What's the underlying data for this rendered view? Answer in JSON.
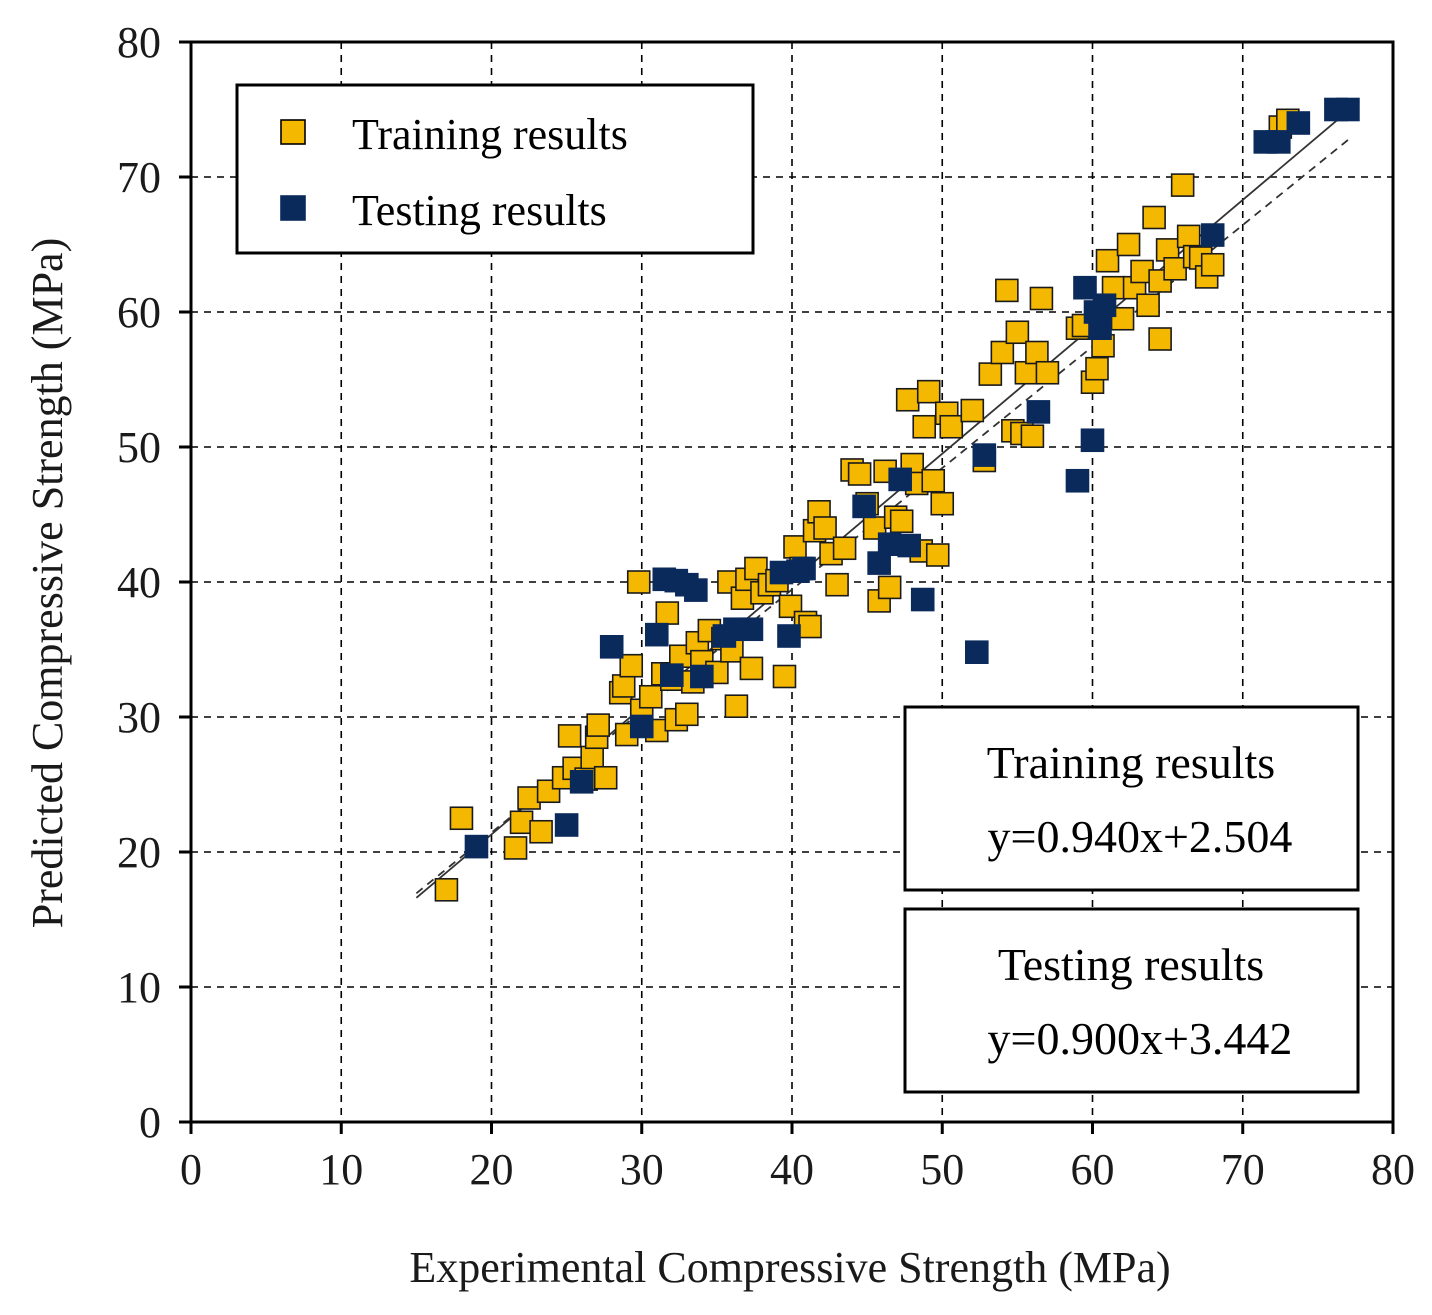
{
  "chart_data": {
    "type": "scatter",
    "title": "",
    "xlabel": "Experimental Compressive Strength (MPa)",
    "ylabel": "Predicted Compressive Strength (MPa)",
    "xlim": [
      0,
      80
    ],
    "ylim": [
      0,
      80
    ],
    "xticks": [
      0,
      10,
      20,
      30,
      40,
      50,
      60,
      70,
      80
    ],
    "yticks": [
      0,
      10,
      20,
      30,
      40,
      50,
      60,
      70,
      80
    ],
    "grid": true,
    "legend": {
      "position": "top-left",
      "entries": [
        "Training results",
        "Testing results"
      ]
    },
    "series": [
      {
        "name": "Training results",
        "color": "#F5B800",
        "points": [
          [
            17,
            17.2
          ],
          [
            18,
            22.5
          ],
          [
            21.6,
            20.3
          ],
          [
            22,
            22.2
          ],
          [
            22.5,
            24
          ],
          [
            23.3,
            21.5
          ],
          [
            23.8,
            24.5
          ],
          [
            24.8,
            25.5
          ],
          [
            25.2,
            28.6
          ],
          [
            25.5,
            26.2
          ],
          [
            26.3,
            25.4
          ],
          [
            26.7,
            27
          ],
          [
            27,
            28.5
          ],
          [
            27.1,
            29.4
          ],
          [
            27.6,
            25.5
          ],
          [
            28.6,
            31.8
          ],
          [
            28.8,
            32.3
          ],
          [
            29,
            28.7
          ],
          [
            29.3,
            33.8
          ],
          [
            29.8,
            40
          ],
          [
            30,
            30.5
          ],
          [
            30.6,
            31.5
          ],
          [
            31,
            29
          ],
          [
            31.4,
            33.2
          ],
          [
            31.7,
            37.7
          ],
          [
            32,
            32.8
          ],
          [
            32.3,
            29.8
          ],
          [
            32.6,
            34.5
          ],
          [
            33,
            30.2
          ],
          [
            33.4,
            32.6
          ],
          [
            33.7,
            35.5
          ],
          [
            34,
            34.1
          ],
          [
            34.5,
            36.4
          ],
          [
            35,
            33.3
          ],
          [
            35.4,
            35.8
          ],
          [
            35.8,
            40
          ],
          [
            36,
            34.9
          ],
          [
            36.3,
            30.8
          ],
          [
            36.7,
            38.8
          ],
          [
            37,
            40.2
          ],
          [
            37.3,
            33.6
          ],
          [
            37.6,
            41
          ],
          [
            38,
            39.2
          ],
          [
            38.5,
            39.8
          ],
          [
            39,
            40.1
          ],
          [
            39.5,
            33
          ],
          [
            39.9,
            38.2
          ],
          [
            40.2,
            42.6
          ],
          [
            40.6,
            41
          ],
          [
            40.9,
            37
          ],
          [
            41.2,
            36.7
          ],
          [
            41.5,
            43.8
          ],
          [
            41.8,
            45.2
          ],
          [
            42.2,
            44
          ],
          [
            42.6,
            42.1
          ],
          [
            43,
            39.8
          ],
          [
            43.5,
            42.5
          ],
          [
            44,
            48.3
          ],
          [
            44.5,
            48
          ],
          [
            45,
            45.8
          ],
          [
            45.5,
            44
          ],
          [
            45.8,
            38.6
          ],
          [
            46.2,
            48.2
          ],
          [
            46.5,
            39.6
          ],
          [
            46.9,
            44.8
          ],
          [
            47.3,
            44.5
          ],
          [
            47.7,
            53.5
          ],
          [
            48,
            48.7
          ],
          [
            48.3,
            47.3
          ],
          [
            48.6,
            42.3
          ],
          [
            48.8,
            51.5
          ],
          [
            49.1,
            54.1
          ],
          [
            49.4,
            47.5
          ],
          [
            49.7,
            42
          ],
          [
            50,
            45.8
          ],
          [
            50.3,
            52.5
          ],
          [
            50.6,
            51.5
          ],
          [
            52,
            52.7
          ],
          [
            52.8,
            49
          ],
          [
            53.2,
            55.4
          ],
          [
            54,
            57
          ],
          [
            54.3,
            61.6
          ],
          [
            54.7,
            51.2
          ],
          [
            55,
            58.5
          ],
          [
            55.3,
            51
          ],
          [
            55.6,
            55.5
          ],
          [
            56,
            50.8
          ],
          [
            56.3,
            57
          ],
          [
            56.6,
            61
          ],
          [
            57,
            55.5
          ],
          [
            59,
            58.8
          ],
          [
            59.4,
            59
          ],
          [
            60,
            54.8
          ],
          [
            60.3,
            55.8
          ],
          [
            60.7,
            57.5
          ],
          [
            61,
            63.8
          ],
          [
            61.4,
            61.8
          ],
          [
            62,
            59.5
          ],
          [
            62.4,
            65
          ],
          [
            62.8,
            61.8
          ],
          [
            63.3,
            63
          ],
          [
            63.7,
            60.5
          ],
          [
            64.1,
            67
          ],
          [
            64.5,
            62.3
          ],
          [
            64.5,
            58
          ],
          [
            65,
            64.6
          ],
          [
            65.5,
            63.2
          ],
          [
            66,
            69.4
          ],
          [
            66.4,
            65.6
          ],
          [
            66.8,
            64.1
          ],
          [
            67.2,
            64
          ],
          [
            67.6,
            62.6
          ],
          [
            68,
            63.5
          ],
          [
            72.5,
            73.7
          ],
          [
            73,
            74.2
          ]
        ]
      },
      {
        "name": "Testing results",
        "color": "#0B2A5C",
        "points": [
          [
            19,
            20.4
          ],
          [
            25,
            22
          ],
          [
            26,
            25.2
          ],
          [
            28,
            35.2
          ],
          [
            30,
            29.3
          ],
          [
            31,
            36.1
          ],
          [
            31.5,
            40.2
          ],
          [
            32,
            33.1
          ],
          [
            32.3,
            40.1
          ],
          [
            33,
            39.8
          ],
          [
            33.6,
            39.4
          ],
          [
            34,
            33
          ],
          [
            35.5,
            36
          ],
          [
            36.2,
            36.5
          ],
          [
            37.3,
            36.5
          ],
          [
            39.3,
            40.7
          ],
          [
            39.8,
            36
          ],
          [
            40.4,
            40.8
          ],
          [
            40.8,
            41
          ],
          [
            44.8,
            45.6
          ],
          [
            45.8,
            41.4
          ],
          [
            46.5,
            42.8
          ],
          [
            47.2,
            47.6
          ],
          [
            47.8,
            42.7
          ],
          [
            48.7,
            38.7
          ],
          [
            52.3,
            34.8
          ],
          [
            52.8,
            49.4
          ],
          [
            56.4,
            52.6
          ],
          [
            59,
            47.5
          ],
          [
            59.5,
            61.8
          ],
          [
            60,
            50.5
          ],
          [
            60.2,
            60
          ],
          [
            60.5,
            58.8
          ],
          [
            60.8,
            60.5
          ],
          [
            68,
            65.7
          ],
          [
            71.5,
            72.6
          ],
          [
            72.4,
            72.6
          ],
          [
            73.7,
            74
          ],
          [
            76.2,
            75
          ],
          [
            77,
            75
          ]
        ]
      }
    ],
    "fits": [
      {
        "name": "Training results",
        "slope": 0.94,
        "intercept": 2.504,
        "style": "solid"
      },
      {
        "name": "Testing results",
        "slope": 0.9,
        "intercept": 3.442,
        "style": "dashed"
      }
    ],
    "annotations": [
      {
        "label": "Training results",
        "equation": "y=0.940x+2.504"
      },
      {
        "label": "Testing results",
        "equation": "y=0.900x+3.442"
      }
    ]
  }
}
